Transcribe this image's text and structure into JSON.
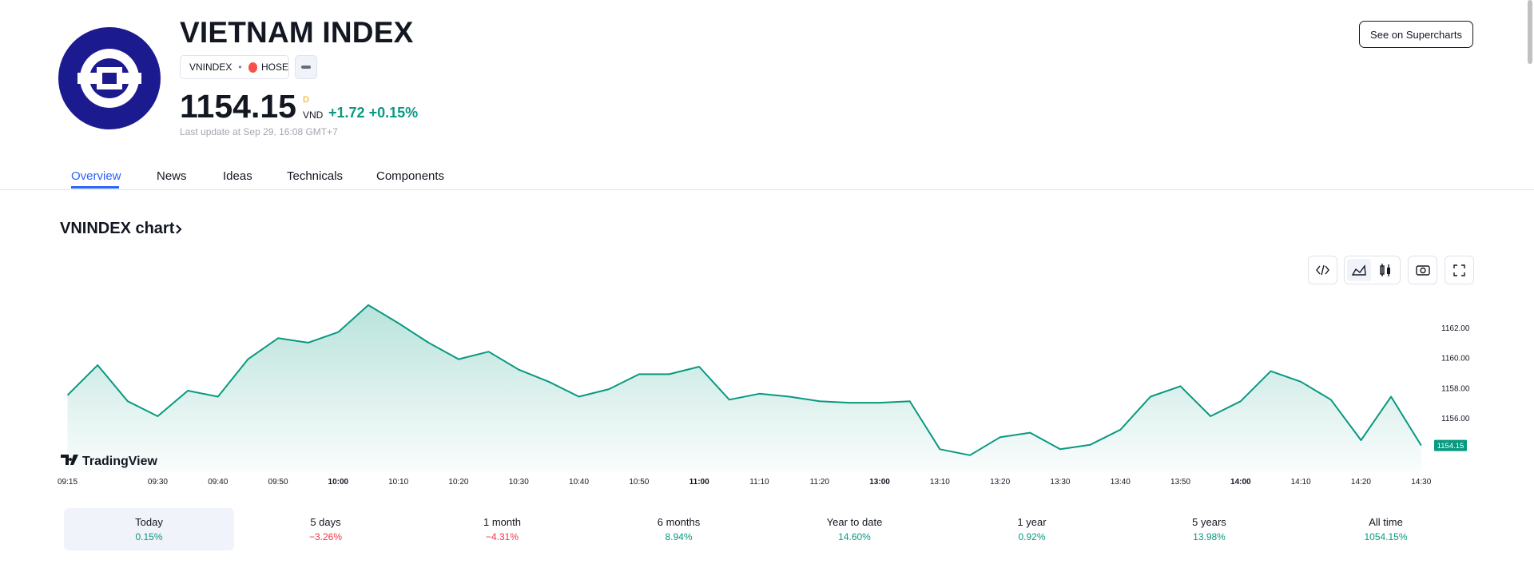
{
  "header": {
    "title": "VIETNAM INDEX",
    "symbol": "VNINDEX",
    "exchange": "HOSE",
    "price": "1154.15",
    "flag": "D",
    "currency": "VND",
    "change": "+1.72",
    "change_percent": "+0.15%",
    "last_update": "Last update at Sep 29, 16:08 GMT+7",
    "button": "See on Supercharts"
  },
  "tabs": [
    "Overview",
    "News",
    "Ideas",
    "Technicals",
    "Components"
  ],
  "chart_title": "VNINDEX chart",
  "chart_data": {
    "type": "line",
    "color": "#089981",
    "watermark": "TradingView",
    "x": [
      "09:15",
      "09:20",
      "09:25",
      "09:30",
      "09:35",
      "09:40",
      "09:45",
      "09:50",
      "09:55",
      "10:00",
      "10:05",
      "10:10",
      "10:15",
      "10:20",
      "10:25",
      "10:30",
      "10:35",
      "10:40",
      "10:45",
      "10:50",
      "10:55",
      "11:00",
      "11:05",
      "11:10",
      "11:15",
      "11:20",
      "11:25",
      "13:00",
      "13:05",
      "13:10",
      "13:15",
      "13:20",
      "13:25",
      "13:30",
      "13:35",
      "13:40",
      "13:45",
      "13:50",
      "13:55",
      "14:00",
      "14:05",
      "14:10",
      "14:15",
      "14:20",
      "14:25",
      "14:30"
    ],
    "values": [
      1157.5,
      1159.5,
      1157.1,
      1156.1,
      1157.8,
      1157.4,
      1159.9,
      1161.3,
      1161.0,
      1161.7,
      1163.5,
      1162.3,
      1161.0,
      1159.9,
      1160.4,
      1159.2,
      1158.4,
      1157.4,
      1157.9,
      1158.9,
      1158.9,
      1159.4,
      1157.2,
      1157.6,
      1157.4,
      1157.1,
      1157.0,
      1157.0,
      1157.1,
      1153.9,
      1153.5,
      1154.7,
      1155.0,
      1153.9,
      1154.2,
      1155.2,
      1157.4,
      1158.1,
      1156.1,
      1157.1,
      1159.1,
      1158.4,
      1157.2,
      1154.5,
      1157.4,
      1154.15
    ],
    "ylim": [
      1152.4,
      1164.4
    ],
    "yticks": [
      {
        "value": 1156,
        "label": "1156.00"
      },
      {
        "value": 1158,
        "label": "1158.00"
      },
      {
        "value": 1160,
        "label": "1160.00"
      },
      {
        "value": 1162,
        "label": "1162.00"
      }
    ],
    "xticks": [
      "09:15",
      "09:30",
      "09:40",
      "09:50",
      "10:00",
      "10:10",
      "10:20",
      "10:30",
      "10:40",
      "10:50",
      "11:00",
      "11:10",
      "11:20",
      "13:00",
      "13:10",
      "13:20",
      "13:30",
      "13:40",
      "13:50",
      "14:00",
      "14:10",
      "14:20",
      "14:30"
    ]
  },
  "periods": [
    {
      "label": "Today",
      "value": "0.15%"
    },
    {
      "label": "5 days",
      "value": "−3.26%"
    },
    {
      "label": "1 month",
      "value": "−4.31%"
    },
    {
      "label": "6 months",
      "value": "8.94%"
    },
    {
      "label": "Year to date",
      "value": "14.60%"
    },
    {
      "label": "1 year",
      "value": "0.92%"
    },
    {
      "label": "5 years",
      "value": "13.98%"
    },
    {
      "label": "All time",
      "value": "1054.15%"
    }
  ]
}
